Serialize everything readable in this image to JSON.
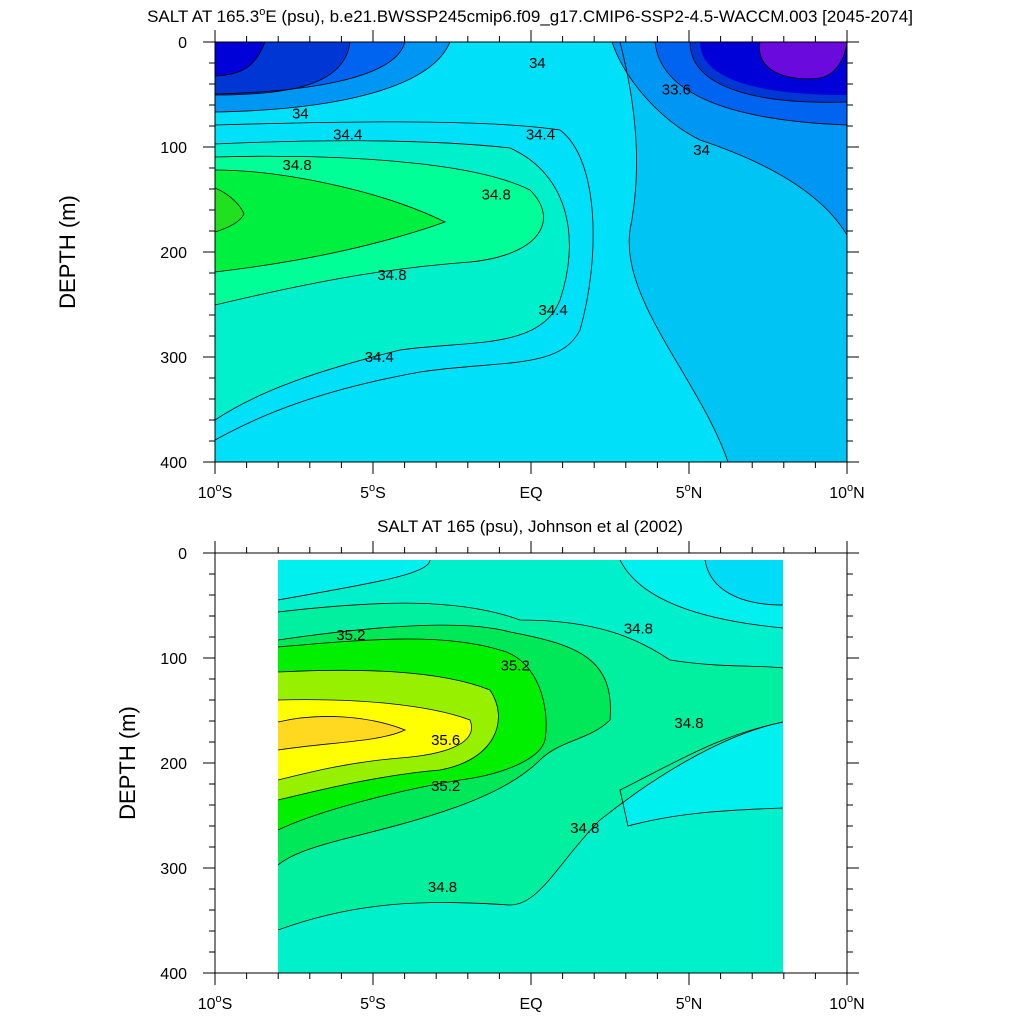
{
  "chart_data": [
    {
      "type": "contour",
      "title_prefix": "SALT AT 165.3",
      "title_sup": "o",
      "title_suffix": "E (psu), b.e21.BWSSP245cmip6.f09_g17.CMIP6-SSP2-4.5-WACCM.003 [2045-2074]",
      "ylabel": "DEPTH (m)",
      "xlim": [
        -10,
        10
      ],
      "ylim": [
        400,
        0
      ],
      "x_ticks": [
        {
          "x": -10,
          "num": "10",
          "sup": "o",
          "hem": "S"
        },
        {
          "x": -5,
          "num": "5",
          "sup": "o",
          "hem": "S"
        },
        {
          "x": 0,
          "num": "EQ",
          "sup": "",
          "hem": ""
        },
        {
          "x": 5,
          "num": "5",
          "sup": "o",
          "hem": "N"
        },
        {
          "x": 10,
          "num": "10",
          "sup": "o",
          "hem": "N"
        }
      ],
      "y_ticks": [
        "0",
        "100",
        "200",
        "300",
        "400"
      ],
      "contour_labels": [
        {
          "text": "34",
          "x": 0.2,
          "y": 20
        },
        {
          "text": "33.6",
          "x": 4.6,
          "y": 45
        },
        {
          "text": "34",
          "x": -7.3,
          "y": 68
        },
        {
          "text": "34.4",
          "x": -5.8,
          "y": 88
        },
        {
          "text": "34.4",
          "x": 0.3,
          "y": 88
        },
        {
          "text": "34",
          "x": 5.4,
          "y": 103
        },
        {
          "text": "34.8",
          "x": -7.4,
          "y": 117
        },
        {
          "text": "34.8",
          "x": -1.1,
          "y": 145
        },
        {
          "text": "34.8",
          "x": -4.4,
          "y": 222
        },
        {
          "text": "34.4",
          "x": 0.7,
          "y": 255
        },
        {
          "text": "34.4",
          "x": -4.8,
          "y": 300
        }
      ],
      "shaded_regions": [
        {
          "value": "<33.2",
          "color": "#0000d8"
        },
        {
          "value": "33.2-33.6",
          "color": "#6a0adc"
        },
        {
          "value": "33.6-33.8",
          "color": "#0036d4"
        },
        {
          "value": "33.8-34.0",
          "color": "#0064f0"
        },
        {
          "value": "34.0-34.2",
          "color": "#0096f4"
        },
        {
          "value": "34.2-34.4",
          "color": "#00c4f4"
        },
        {
          "value": "34.4-34.6",
          "color": "#00e0f8"
        },
        {
          "value": "34.6-34.8",
          "color": "#00f0cc"
        },
        {
          "value": "34.8-35.0",
          "color": "#00ff96"
        },
        {
          "value": "35.0-35.2",
          "color": "#00f040"
        }
      ]
    },
    {
      "type": "contour",
      "title": "SALT AT 165 (psu), Johnson et al (2002)",
      "ylabel": "DEPTH (m)",
      "xlim": [
        -10,
        10
      ],
      "ylim": [
        400,
        0
      ],
      "data_xrange": [
        -8,
        8
      ],
      "x_ticks": [
        {
          "x": -10,
          "num": "10",
          "sup": "o",
          "hem": "S"
        },
        {
          "x": -5,
          "num": "5",
          "sup": "o",
          "hem": "S"
        },
        {
          "x": 0,
          "num": "EQ",
          "sup": "",
          "hem": ""
        },
        {
          "x": 5,
          "num": "5",
          "sup": "o",
          "hem": "N"
        },
        {
          "x": 10,
          "num": "10",
          "sup": "o",
          "hem": "N"
        }
      ],
      "y_ticks": [
        "0",
        "100",
        "200",
        "300",
        "400"
      ],
      "contour_labels": [
        {
          "text": "35.2",
          "x": -5.7,
          "y": 78
        },
        {
          "text": "35.2",
          "x": -0.5,
          "y": 107
        },
        {
          "text": "34.8",
          "x": 3.4,
          "y": 72
        },
        {
          "text": "35.6",
          "x": -2.7,
          "y": 178
        },
        {
          "text": "34.8",
          "x": 5.0,
          "y": 162
        },
        {
          "text": "35.2",
          "x": -2.7,
          "y": 222
        },
        {
          "text": "34.8",
          "x": 1.7,
          "y": 262
        },
        {
          "text": "34.8",
          "x": -2.8,
          "y": 318
        }
      ],
      "shaded_regions": [
        {
          "value": "34.2-34.4",
          "color": "#00dcf8"
        },
        {
          "value": "34.4-34.6",
          "color": "#00f0f0"
        },
        {
          "value": "34.6-34.8",
          "color": "#00f0cc"
        },
        {
          "value": "34.8-35.0",
          "color": "#00f0a0"
        },
        {
          "value": "35.0-35.2",
          "color": "#00e858"
        },
        {
          "value": "35.2-35.4",
          "color": "#00f000"
        },
        {
          "value": "35.4-35.6",
          "color": "#96f000"
        },
        {
          "value": "35.6-35.8",
          "color": "#ffff00"
        },
        {
          "value": ">35.8",
          "color": "#ffd820"
        }
      ]
    }
  ]
}
